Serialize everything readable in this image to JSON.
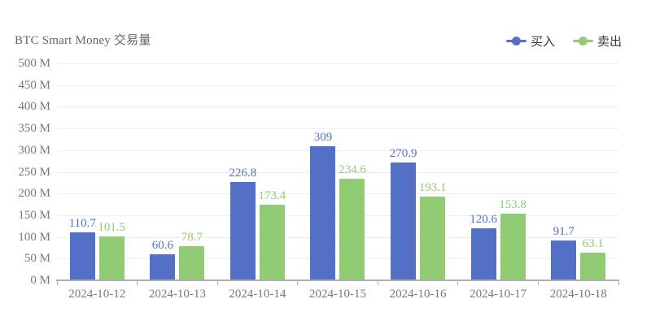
{
  "legend": {
    "items": [
      {
        "label": "买入",
        "color": "#5470c6"
      },
      {
        "label": "卖出",
        "color": "#91cc75"
      }
    ]
  },
  "chart_data": {
    "type": "bar",
    "title": "BTC Smart Money 交易量",
    "categories": [
      "2024-10-12",
      "2024-10-13",
      "2024-10-14",
      "2024-10-15",
      "2024-10-16",
      "2024-10-17",
      "2024-10-18"
    ],
    "series": [
      {
        "name": "买入",
        "color": "#5470c6",
        "values": [
          110.7,
          60.6,
          226.8,
          309,
          270.9,
          120.6,
          91.7
        ]
      },
      {
        "name": "卖出",
        "color": "#91cc75",
        "values": [
          101.5,
          78.7,
          173.4,
          234.6,
          193.1,
          153.8,
          63.1
        ]
      }
    ],
    "ylim": [
      0,
      500
    ],
    "y_tick_step": 50,
    "y_tick_labels": [
      "0 M",
      "50 M",
      "100 M",
      "150 M",
      "200 M",
      "250 M",
      "300 M",
      "350 M",
      "400 M",
      "450 M",
      "500 M"
    ],
    "y_unit": "M",
    "grid": true,
    "legend_position": "top-right",
    "value_labels": "above-bars"
  },
  "colors": {
    "buy": "#5470c6",
    "sell": "#91cc75",
    "grid_line": "#e9edf5",
    "axis_line": "#aaadb2",
    "axis_label": "#75787e",
    "title_text": "#666666",
    "legend_text": "#333740",
    "background": "#ffffff"
  }
}
